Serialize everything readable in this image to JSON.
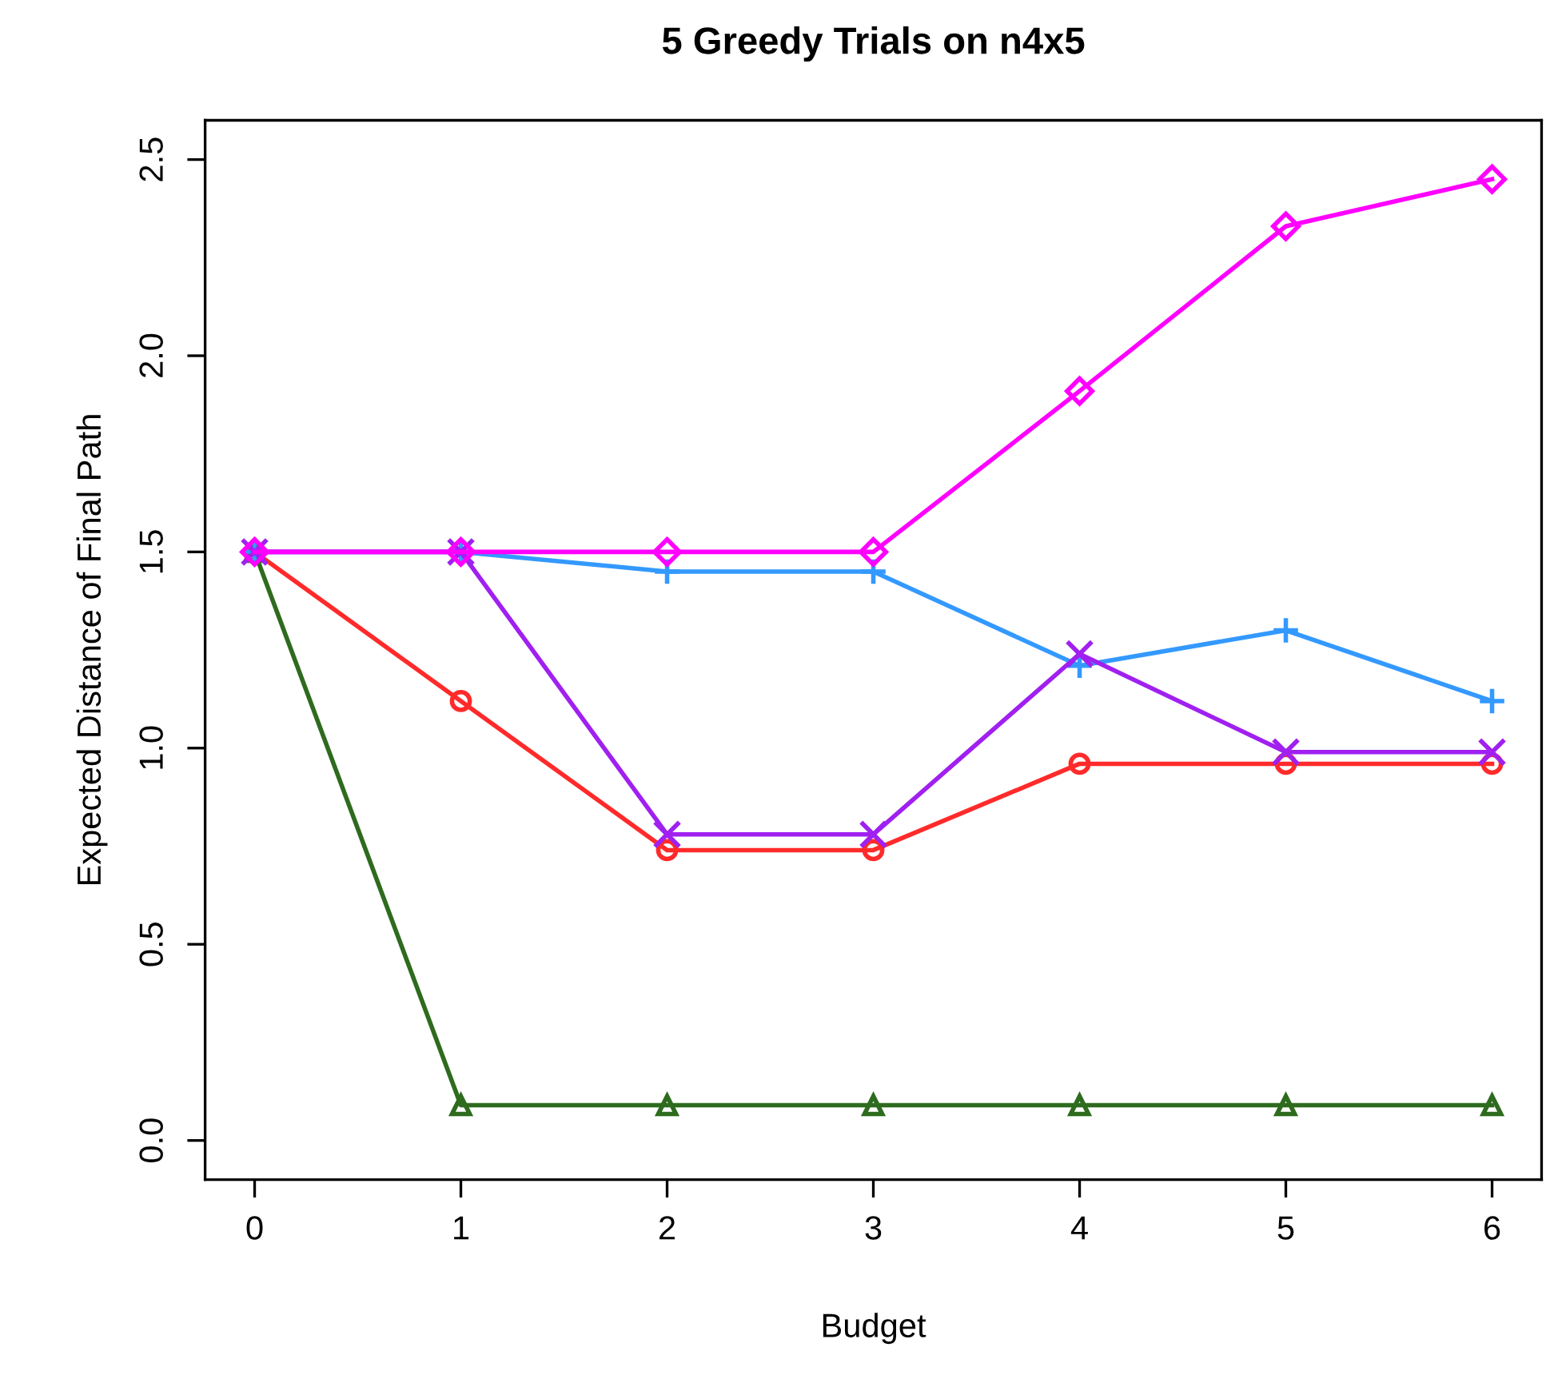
{
  "chart_data": {
    "type": "line",
    "title": "5 Greedy Trials on n4x5",
    "xlabel": "Budget",
    "ylabel": "Expected Distance of Final Path",
    "x": [
      0,
      1,
      2,
      3,
      4,
      5,
      6
    ],
    "series": [
      {
        "color": "#ff2a2a",
        "marker": "circle",
        "values": [
          1.5,
          1.12,
          0.74,
          0.74,
          0.96,
          0.96,
          0.96
        ]
      },
      {
        "color": "#2e6b1e",
        "marker": "triangle",
        "values": [
          1.5,
          0.09,
          0.09,
          0.09,
          0.09,
          0.09,
          0.09
        ]
      },
      {
        "color": "#3399ff",
        "marker": "plus",
        "values": [
          1.5,
          1.5,
          1.45,
          1.45,
          1.21,
          1.3,
          1.12
        ]
      },
      {
        "color": "#a020f0",
        "marker": "x",
        "values": [
          1.5,
          1.5,
          0.78,
          0.78,
          1.24,
          0.99,
          0.99
        ]
      },
      {
        "color": "#ff00ff",
        "marker": "diamond",
        "values": [
          1.5,
          1.5,
          1.5,
          1.5,
          1.91,
          2.33,
          2.45
        ]
      }
    ],
    "xlim": [
      -0.24,
      6.24
    ],
    "ylim": [
      -0.1,
      2.6
    ],
    "xticks": [
      0,
      1,
      2,
      3,
      4,
      5,
      6
    ],
    "yticks": [
      {
        "value": 0,
        "label": "0.0"
      },
      0.5,
      {
        "value": 1,
        "label": "1.0"
      },
      1.5,
      {
        "value": 2,
        "label": "2.0"
      },
      2.5
    ],
    "grid": false,
    "line_style": "solid"
  }
}
